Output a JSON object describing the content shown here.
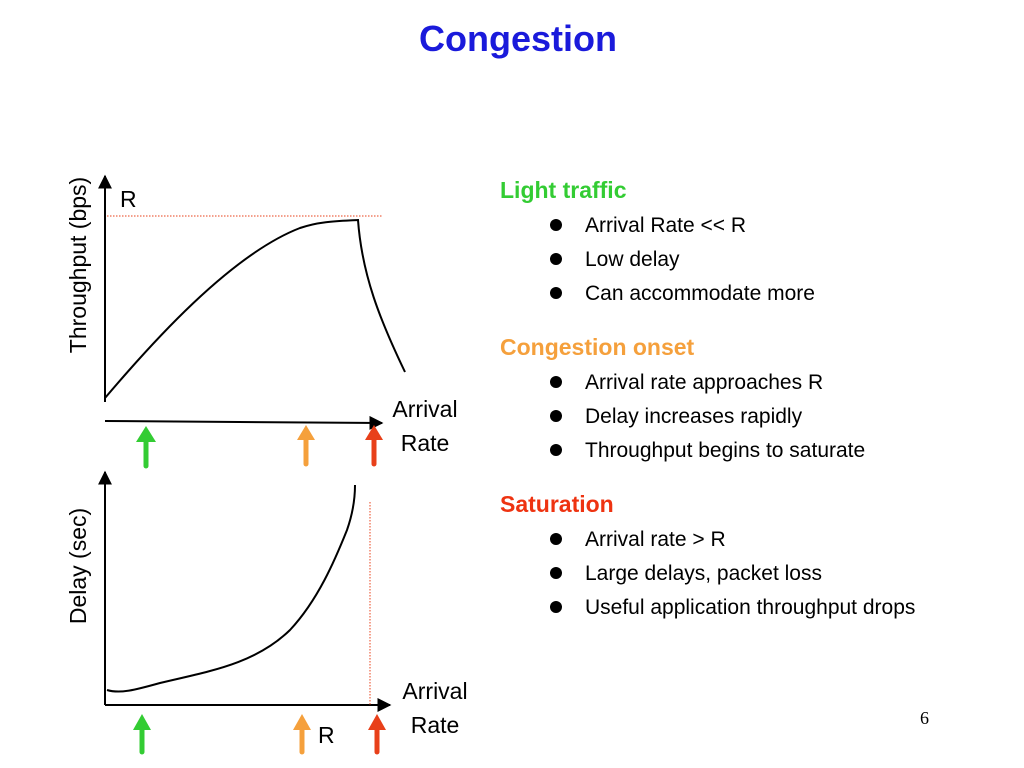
{
  "title": "Congestion",
  "page_number": "6",
  "top_chart": {
    "y_axis_label": "Throughput (bps)",
    "r_label": "R",
    "x_axis_label_line1": "Arrival",
    "x_axis_label_line2": "Rate"
  },
  "bottom_chart": {
    "y_axis_label": "Delay (sec)",
    "r_label": "R",
    "x_axis_label_line1": "Arrival",
    "x_axis_label_line2": "Rate"
  },
  "arrow_colors": {
    "light": "#33cc33",
    "onset": "#f5a03c",
    "saturation": "#e8401a"
  },
  "sections": [
    {
      "heading": "Light traffic",
      "color": "#33cc33",
      "bullets": [
        "Arrival Rate << R",
        "Low delay",
        "Can accommodate more"
      ]
    },
    {
      "heading": "Congestion onset",
      "color": "#f5a03c",
      "bullets": [
        "Arrival rate approaches R",
        "Delay increases rapidly",
        "Throughput begins to saturate"
      ]
    },
    {
      "heading": "Saturation",
      "color": "#ee3311",
      "bullets": [
        "Arrival rate > R",
        "Large delays, packet loss",
        "Useful application throughput drops"
      ]
    }
  ]
}
